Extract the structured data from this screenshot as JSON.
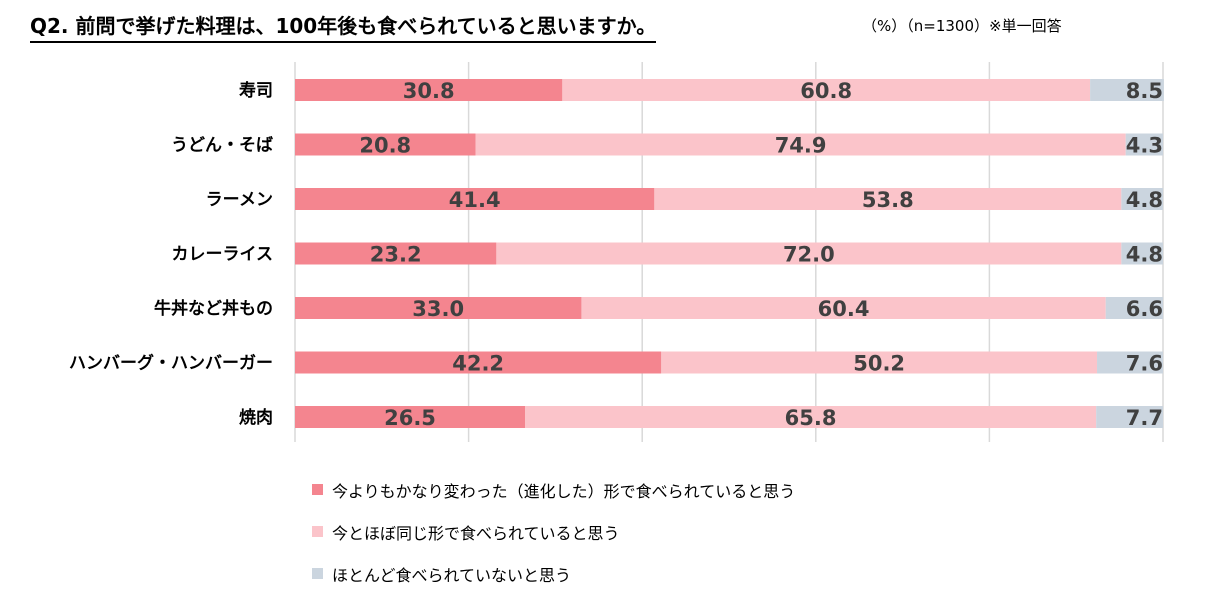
{
  "title": "Q2. 前問で挙げた料理は、100年後も食べられていると思いますか。",
  "note": "（%）（n=1300）※単一回答",
  "chart_data": {
    "type": "bar",
    "orientation": "horizontal",
    "stacked": true,
    "title": "Q2. 前問で挙げた料理は、100年後も食べられていると思いますか。",
    "xlim": [
      0,
      100
    ],
    "grid": true,
    "legend_position": "bottom",
    "categories": [
      "寿司",
      "うどん・そば",
      "ラーメン",
      "カレーライス",
      "牛丼など丼もの",
      "ハンバーグ・ハンバーガー",
      "焼肉"
    ],
    "series": [
      {
        "name": "今よりもかなり変わった（進化した）形で食べられていると思う",
        "color": "#f4858f",
        "values": [
          30.8,
          20.8,
          41.4,
          23.2,
          33.0,
          42.2,
          26.5
        ]
      },
      {
        "name": "今とほぼ同じ形で食べられていると思う",
        "color": "#fbc4ca",
        "values": [
          60.8,
          74.9,
          53.8,
          72.0,
          60.4,
          50.2,
          65.8
        ]
      },
      {
        "name": "ほとんど食べられていないと思う",
        "color": "#cbd5df",
        "values": [
          8.5,
          4.3,
          4.8,
          4.8,
          6.6,
          7.6,
          7.7
        ]
      }
    ]
  }
}
